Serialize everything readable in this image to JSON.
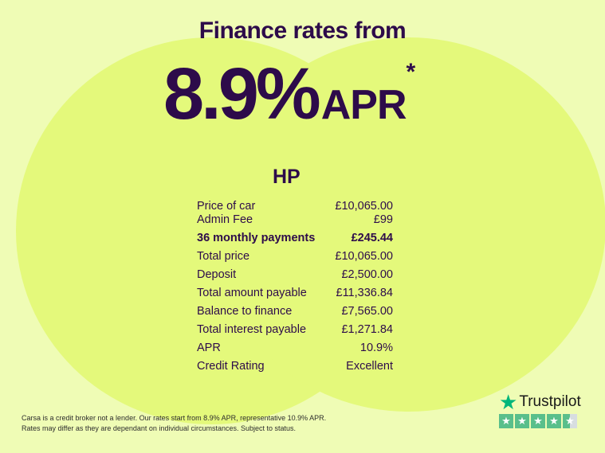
{
  "header": {
    "title": "Finance rates from",
    "rate": "8.9%",
    "apr": "APR",
    "asterisk": "*"
  },
  "product": "HP",
  "rows": [
    {
      "label": "Price of car",
      "value": "£10,065.00"
    },
    {
      "label": "Admin Fee",
      "value": "£99"
    },
    {
      "label": "36 monthly payments",
      "value": "£245.44"
    },
    {
      "label": "Total price",
      "value": "£10,065.00"
    },
    {
      "label": "Deposit",
      "value": "£2,500.00"
    },
    {
      "label": "Total amount payable",
      "value": "£11,336.84"
    },
    {
      "label": "Balance to finance",
      "value": "£7,565.00"
    },
    {
      "label": "Total interest payable",
      "value": "£1,271.84"
    },
    {
      "label": "APR",
      "value": "10.9%"
    },
    {
      "label": "Credit Rating",
      "value": "Excellent"
    }
  ],
  "disclaimer": {
    "line1": "Carsa is a credit broker not a lender. Our rates start from 8.9% APR, representative 10.9% APR.",
    "line2": "Rates may differ as they are dependant on individual circumstances. Subject to status."
  },
  "trustpilot": {
    "name": "Trustpilot",
    "rating_stars": 4.5,
    "brand_color": "#00b67a"
  },
  "colors": {
    "background": "#effcb5",
    "circle": "#e4f97b",
    "text": "#2d0b4a"
  }
}
